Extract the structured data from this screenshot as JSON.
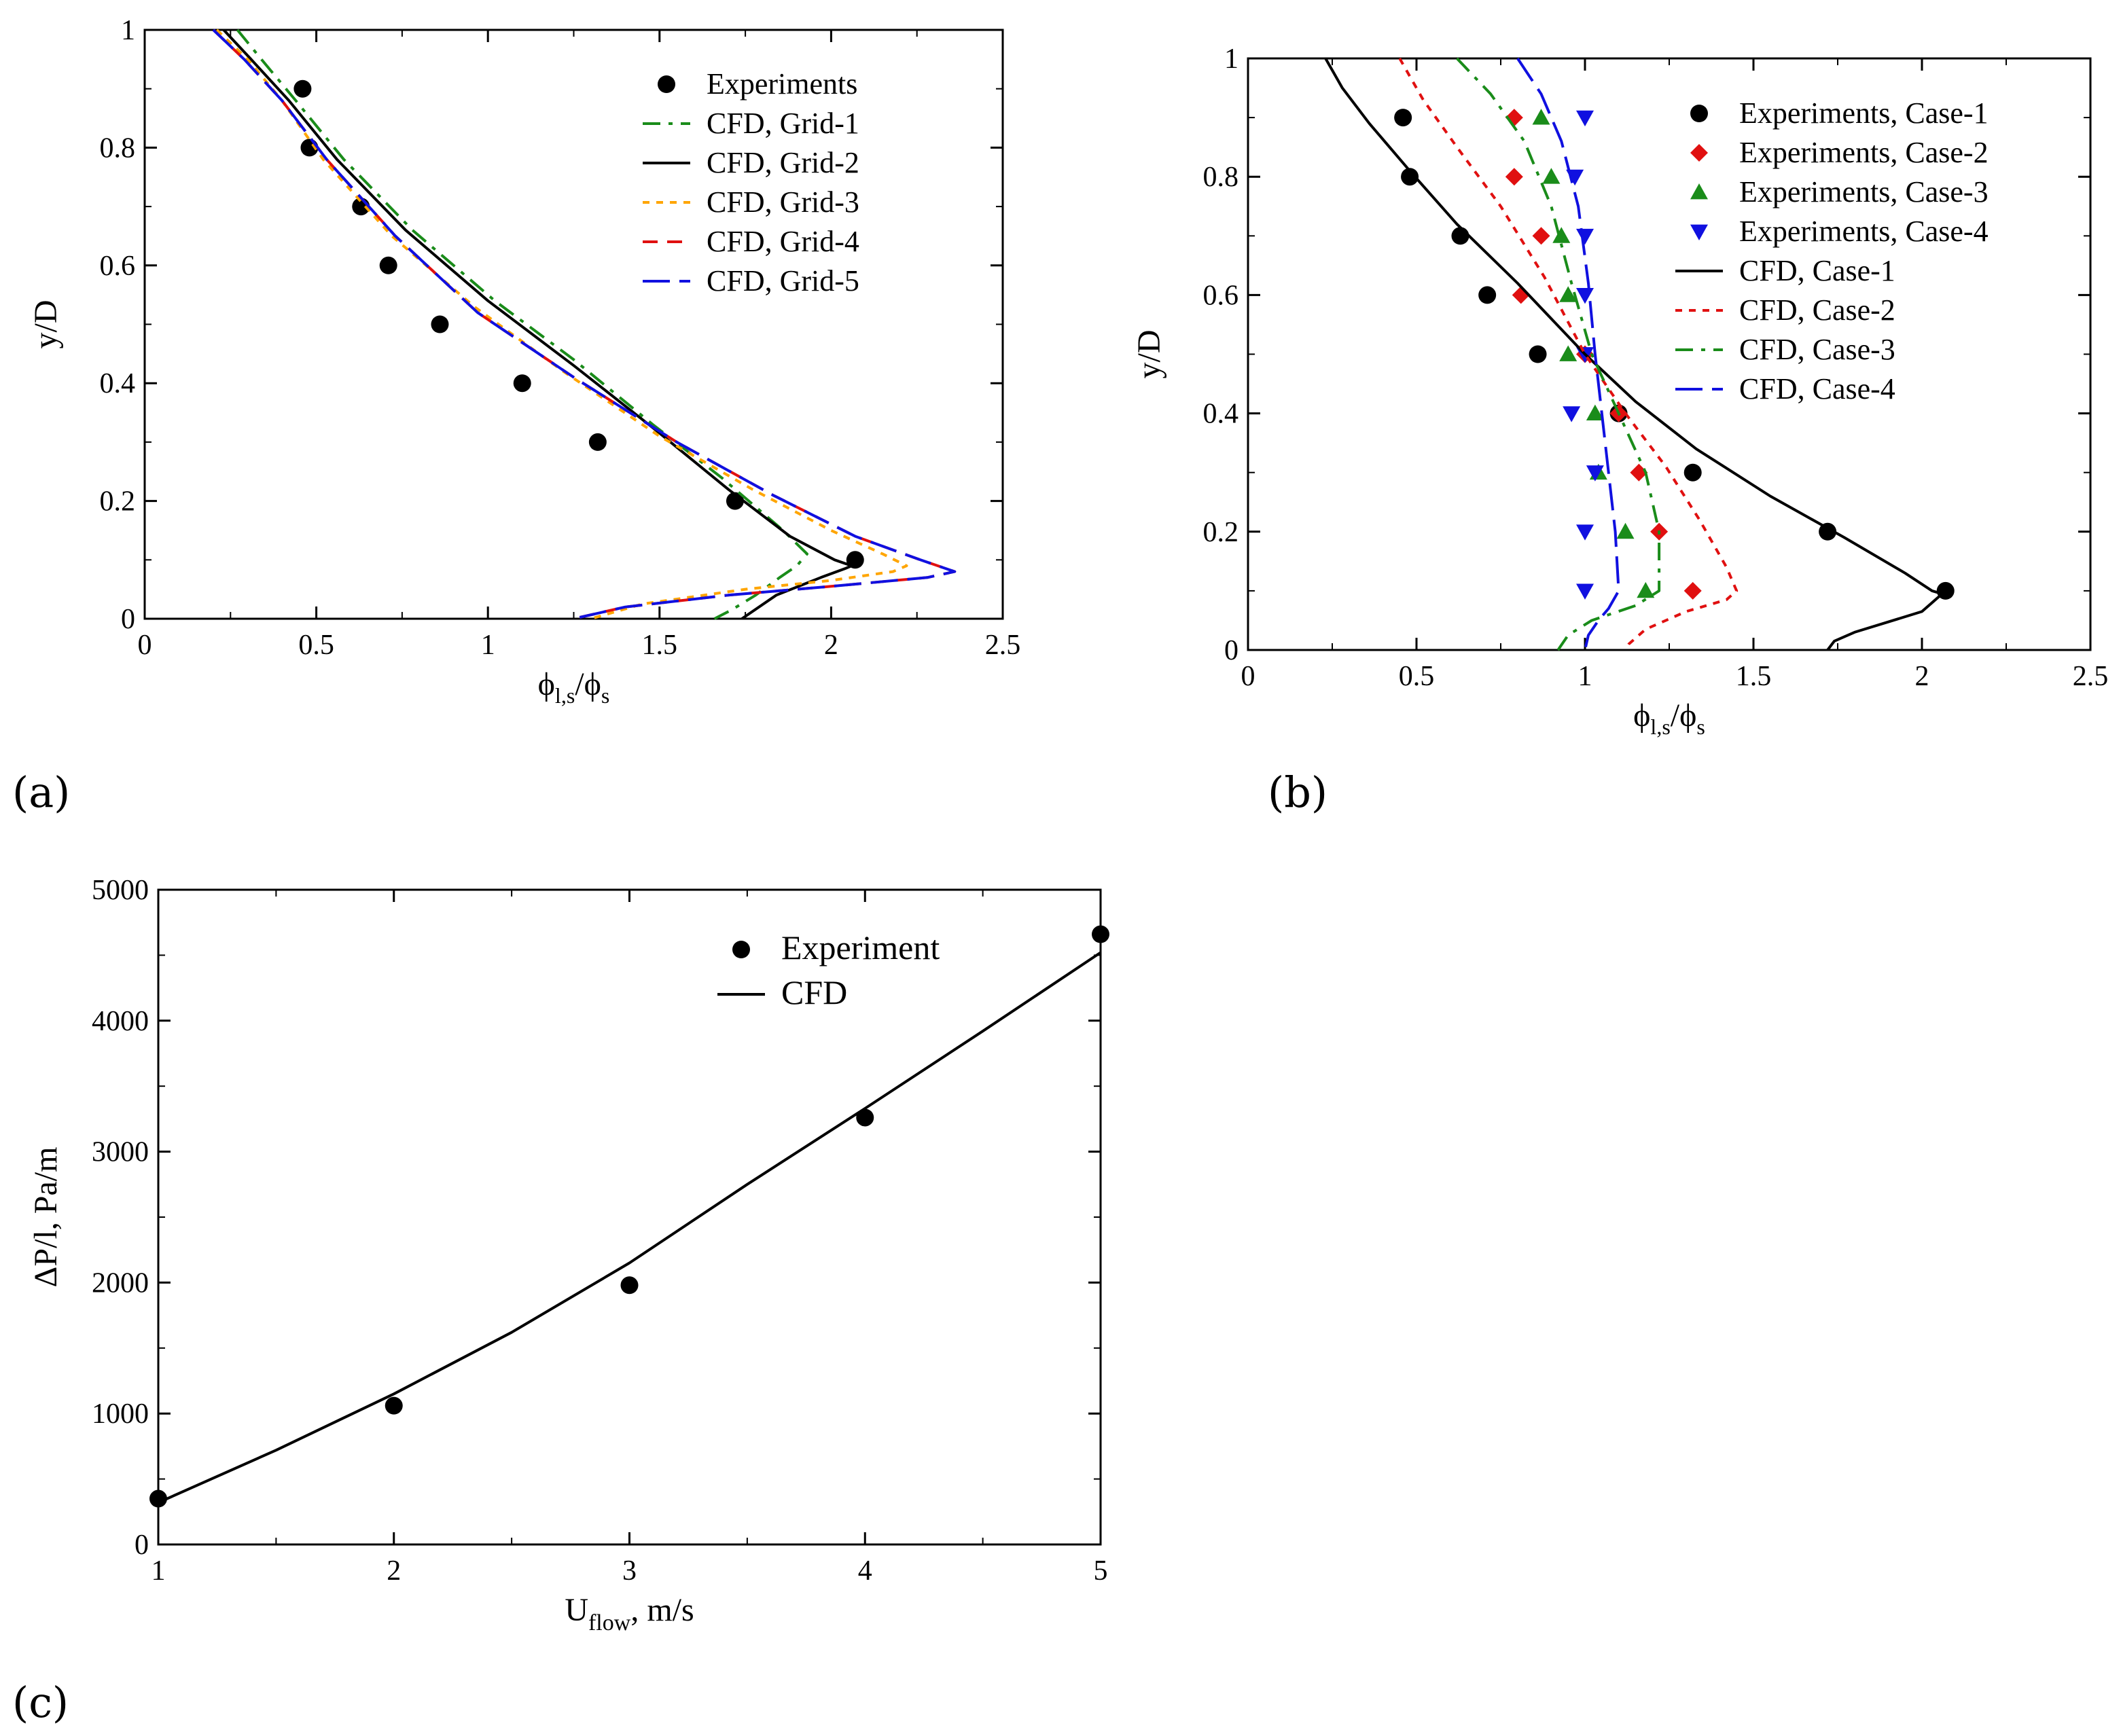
{
  "panel_labels": {
    "a": "(a)",
    "b": "(b)",
    "c": "(c)"
  },
  "chart_data": [
    {
      "id": "a",
      "type": "line",
      "xlabel": "ϕl,s/ϕs",
      "ylabel": "y/D",
      "xlim": [
        0,
        2.5
      ],
      "ylim": [
        0,
        1
      ],
      "xticks": [
        "0",
        "0.5",
        "1",
        "1.5",
        "2",
        "2.5"
      ],
      "yticks": [
        "0",
        "0.2",
        "0.4",
        "0.6",
        "0.8",
        "1"
      ],
      "xtick_values": [
        0,
        0.5,
        1,
        1.5,
        2,
        2.5
      ],
      "ytick_values": [
        0,
        0.2,
        0.4,
        0.6,
        0.8,
        1
      ],
      "legend_position": "top-right",
      "series": [
        {
          "name": "Experiments",
          "kind": "points",
          "marker": "circle",
          "color": "#000000",
          "x": [
            0.46,
            0.48,
            0.63,
            0.71,
            0.86,
            1.1,
            1.32,
            1.72,
            2.07
          ],
          "y": [
            0.9,
            0.8,
            0.7,
            0.6,
            0.5,
            0.4,
            0.3,
            0.2,
            0.1
          ]
        },
        {
          "name": "CFD, Grid-1",
          "kind": "line",
          "dash": "dash-dot",
          "color": "#1a8c1a",
          "x": [
            0.27,
            0.34,
            0.44,
            0.58,
            0.78,
            1.02,
            1.25,
            1.48,
            1.68,
            1.86,
            1.93,
            1.9,
            1.85,
            1.78,
            1.71,
            1.66
          ],
          "y": [
            1.0,
            0.95,
            0.88,
            0.78,
            0.66,
            0.54,
            0.44,
            0.33,
            0.24,
            0.15,
            0.11,
            0.09,
            0.07,
            0.04,
            0.015,
            0.0
          ]
        },
        {
          "name": "CFD, Grid-2",
          "kind": "line",
          "dash": "solid",
          "color": "#000000",
          "x": [
            0.23,
            0.31,
            0.42,
            0.56,
            0.76,
            1.0,
            1.25,
            1.49,
            1.7,
            1.88,
            2.01,
            2.06,
            2.04,
            1.97,
            1.84,
            1.74
          ],
          "y": [
            1.0,
            0.95,
            0.88,
            0.78,
            0.66,
            0.54,
            0.43,
            0.32,
            0.22,
            0.14,
            0.1,
            0.09,
            0.085,
            0.07,
            0.04,
            0.0
          ]
        },
        {
          "name": "CFD, Grid-3",
          "kind": "line",
          "dash": "dot",
          "color": "#ffa500",
          "x": [
            0.21,
            0.3,
            0.4,
            0.52,
            0.72,
            0.96,
            1.22,
            1.5,
            1.77,
            2.0,
            2.15,
            2.22,
            2.18,
            2.0,
            1.75,
            1.45,
            1.3
          ],
          "y": [
            1.0,
            0.95,
            0.88,
            0.78,
            0.65,
            0.53,
            0.42,
            0.31,
            0.22,
            0.15,
            0.11,
            0.09,
            0.08,
            0.065,
            0.05,
            0.025,
            0.0
          ]
        },
        {
          "name": "CFD, Grid-4",
          "kind": "line",
          "dash": "dash",
          "color": "#e01010",
          "x": [
            0.2,
            0.29,
            0.4,
            0.53,
            0.73,
            0.97,
            1.25,
            1.55,
            1.83,
            2.07,
            2.26,
            2.36,
            2.28,
            2.0,
            1.7,
            1.4,
            1.25
          ],
          "y": [
            1.0,
            0.95,
            0.88,
            0.78,
            0.65,
            0.52,
            0.41,
            0.3,
            0.21,
            0.14,
            0.1,
            0.08,
            0.07,
            0.055,
            0.04,
            0.02,
            0.0
          ]
        },
        {
          "name": "CFD, Grid-5",
          "kind": "line",
          "dash": "longdash",
          "color": "#1010e0",
          "x": [
            0.2,
            0.29,
            0.4,
            0.53,
            0.73,
            0.97,
            1.25,
            1.55,
            1.83,
            2.07,
            2.26,
            2.36,
            2.28,
            2.0,
            1.7,
            1.4,
            1.25
          ],
          "y": [
            1.0,
            0.95,
            0.88,
            0.78,
            0.65,
            0.52,
            0.41,
            0.3,
            0.21,
            0.14,
            0.1,
            0.08,
            0.07,
            0.055,
            0.04,
            0.02,
            0.0
          ]
        }
      ]
    },
    {
      "id": "b",
      "type": "line",
      "xlabel": "ϕl,s/ϕs",
      "ylabel": "y/D",
      "xlim": [
        0,
        2.5
      ],
      "ylim": [
        0,
        1
      ],
      "xticks": [
        "0",
        "0.5",
        "1",
        "1.5",
        "2",
        "2.5"
      ],
      "yticks": [
        "0",
        "0.2",
        "0.4",
        "0.6",
        "0.8",
        "1"
      ],
      "xtick_values": [
        0,
        0.5,
        1,
        1.5,
        2,
        2.5
      ],
      "ytick_values": [
        0,
        0.2,
        0.4,
        0.6,
        0.8,
        1
      ],
      "legend_position": "top-right",
      "series": [
        {
          "name": "Experiments, Case-1",
          "kind": "points",
          "marker": "circle",
          "color": "#000000",
          "x": [
            0.46,
            0.48,
            0.63,
            0.71,
            0.86,
            1.1,
            1.32,
            1.72,
            2.07
          ],
          "y": [
            0.9,
            0.8,
            0.7,
            0.6,
            0.5,
            0.4,
            0.3,
            0.2,
            0.1
          ]
        },
        {
          "name": "Experiments, Case-2",
          "kind": "points",
          "marker": "diamond",
          "color": "#e01010",
          "x": [
            0.79,
            0.79,
            0.87,
            0.81,
            1.0,
            1.1,
            1.16,
            1.22,
            1.32
          ],
          "y": [
            0.9,
            0.8,
            0.7,
            0.6,
            0.5,
            0.4,
            0.3,
            0.2,
            0.1
          ]
        },
        {
          "name": "Experiments, Case-3",
          "kind": "points",
          "marker": "triangle-up",
          "color": "#1a8c1a",
          "x": [
            0.87,
            0.9,
            0.93,
            0.95,
            0.95,
            1.03,
            1.04,
            1.12,
            1.18
          ],
          "y": [
            0.9,
            0.8,
            0.7,
            0.6,
            0.5,
            0.4,
            0.3,
            0.2,
            0.1
          ]
        },
        {
          "name": "Experiments, Case-4",
          "kind": "points",
          "marker": "triangle-down",
          "color": "#1010e0",
          "x": [
            1.0,
            0.97,
            1.0,
            1.0,
            1.0,
            0.96,
            1.03,
            1.0,
            1.0
          ],
          "y": [
            0.9,
            0.8,
            0.7,
            0.6,
            0.5,
            0.4,
            0.3,
            0.2,
            0.1
          ]
        },
        {
          "name": "CFD, Case-1",
          "kind": "line",
          "dash": "solid",
          "color": "#000000",
          "x": [
            0.23,
            0.28,
            0.36,
            0.48,
            0.62,
            0.8,
            1.0,
            1.15,
            1.33,
            1.55,
            1.77,
            1.95,
            2.03,
            2.06,
            2.0,
            1.8,
            1.74,
            1.72
          ],
          "y": [
            1.0,
            0.95,
            0.89,
            0.81,
            0.72,
            0.62,
            0.5,
            0.42,
            0.34,
            0.26,
            0.19,
            0.13,
            0.1,
            0.095,
            0.065,
            0.03,
            0.015,
            0.0
          ]
        },
        {
          "name": "CFD, Case-2",
          "kind": "line",
          "dash": "dot",
          "color": "#e01010",
          "x": [
            0.45,
            0.52,
            0.62,
            0.75,
            0.88,
            1.0,
            1.12,
            1.24,
            1.34,
            1.42,
            1.45,
            1.42,
            1.3,
            1.18,
            1.13,
            1.12
          ],
          "y": [
            1.0,
            0.93,
            0.85,
            0.75,
            0.63,
            0.5,
            0.4,
            0.31,
            0.22,
            0.14,
            0.1,
            0.085,
            0.065,
            0.035,
            0.01,
            0.0
          ]
        },
        {
          "name": "CFD, Case-3",
          "kind": "line",
          "dash": "dash-dot",
          "color": "#1a8c1a",
          "x": [
            0.62,
            0.72,
            0.82,
            0.9,
            0.96,
            1.02,
            1.1,
            1.18,
            1.22,
            1.22,
            1.15,
            1.02,
            0.95,
            0.92
          ],
          "y": [
            1.0,
            0.94,
            0.86,
            0.75,
            0.62,
            0.5,
            0.4,
            0.3,
            0.2,
            0.1,
            0.075,
            0.05,
            0.025,
            0.0
          ]
        },
        {
          "name": "CFD, Case-4",
          "kind": "line",
          "dash": "longdash",
          "color": "#1010e0",
          "x": [
            0.8,
            0.87,
            0.93,
            0.98,
            1.01,
            1.03,
            1.05,
            1.07,
            1.09,
            1.1,
            1.07,
            1.04,
            1.01,
            1.0
          ],
          "y": [
            1.0,
            0.94,
            0.86,
            0.75,
            0.62,
            0.5,
            0.4,
            0.3,
            0.2,
            0.1,
            0.07,
            0.05,
            0.025,
            0.0
          ]
        }
      ]
    },
    {
      "id": "c",
      "type": "line",
      "xlabel": "Uflow, m/s",
      "ylabel": "ΔP/l, Pa/m",
      "xlim": [
        1,
        5
      ],
      "ylim": [
        0,
        5000
      ],
      "xticks": [
        "1",
        "2",
        "3",
        "4",
        "5"
      ],
      "yticks": [
        "0",
        "1000",
        "2000",
        "3000",
        "4000",
        "5000"
      ],
      "xtick_values": [
        1,
        2,
        3,
        4,
        5
      ],
      "ytick_values": [
        0,
        1000,
        2000,
        3000,
        4000,
        5000
      ],
      "legend_position": "top-right",
      "series": [
        {
          "name": "Experiment",
          "kind": "points",
          "marker": "circle",
          "color": "#000000",
          "x": [
            1,
            2,
            3,
            4,
            5
          ],
          "y": [
            350,
            1060,
            1980,
            3260,
            4660
          ]
        },
        {
          "name": "CFD",
          "kind": "line",
          "dash": "solid",
          "color": "#000000",
          "x": [
            1,
            1.5,
            2,
            2.5,
            3,
            3.5,
            4,
            4.5,
            5
          ],
          "y": [
            320,
            720,
            1150,
            1620,
            2150,
            2750,
            3330,
            3920,
            4520
          ]
        }
      ]
    }
  ]
}
